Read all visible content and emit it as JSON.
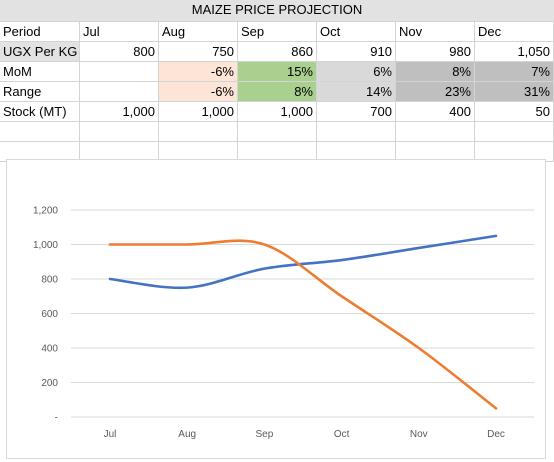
{
  "sheet": {
    "title": "MAIZE PRICE PROJECTION",
    "header_label": "Period",
    "months": [
      "Jul",
      "Aug",
      "Sep",
      "Oct",
      "Nov",
      "Dec"
    ],
    "rows": [
      {
        "label": "UGX Per KG",
        "cells": [
          "800",
          "750",
          "860",
          "910",
          "980",
          "1,050"
        ]
      },
      {
        "label": "MoM",
        "cells": [
          "",
          "-6%",
          "15%",
          "6%",
          "8%",
          "7%"
        ]
      },
      {
        "label": "Range",
        "cells": [
          "",
          "-6%",
          "8%",
          "14%",
          "23%",
          "31%"
        ]
      },
      {
        "label": "Stock (MT)",
        "cells": [
          "1,000",
          "1,000",
          "1,000",
          "700",
          "400",
          "50"
        ]
      }
    ],
    "cell_colors": {
      "MoM": [
        "",
        "#fce4d6",
        "#a9d08e",
        "#d9d9d9",
        "#bfbfbf",
        "#bfbfbf"
      ],
      "Range": [
        "",
        "#fce4d6",
        "#a9d08e",
        "#d9d9d9",
        "#bfbfbf",
        "#bfbfbf"
      ]
    },
    "header_fill": "#e2e2e2"
  },
  "chart_data": {
    "type": "line",
    "categories": [
      "Jul",
      "Aug",
      "Sep",
      "Oct",
      "Nov",
      "Dec"
    ],
    "series": [
      {
        "values": [
          800,
          750,
          860,
          910,
          980,
          1050
        ],
        "color": "#4472c4"
      },
      {
        "values": [
          1000,
          1000,
          1000,
          700,
          400,
          50
        ],
        "color": "#ed7d31"
      }
    ],
    "y_ticks": [
      "-",
      "200",
      "400",
      "600",
      "800",
      "1,000",
      "1,200"
    ],
    "ylim": [
      0,
      1200
    ],
    "grid": true,
    "legend": "none"
  }
}
